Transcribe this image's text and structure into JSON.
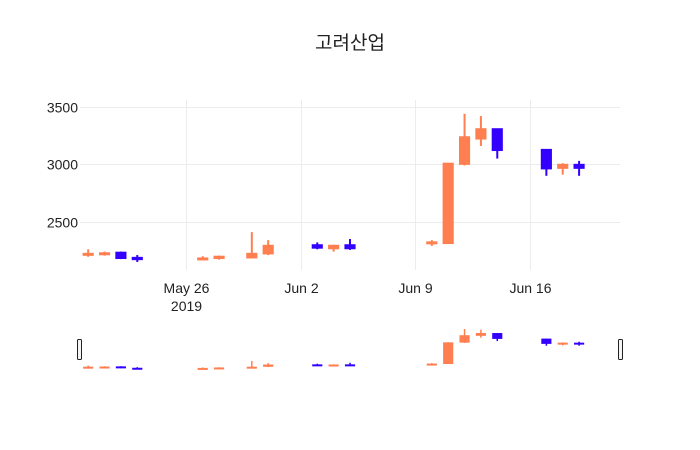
{
  "chart_data": {
    "type": "candlestick",
    "title": "고려산업",
    "xlabel": "",
    "ylabel": "",
    "ylim": [
      2080,
      3560
    ],
    "y_ticks": [
      2500,
      3000,
      3500
    ],
    "y_tick_labels": [
      "2500",
      "3000",
      "3500"
    ],
    "x_ticks": [
      {
        "date": "2019-05-26",
        "label": "May 26",
        "sublabel": "2019"
      },
      {
        "date": "2019-06-02",
        "label": "Jun 2",
        "sublabel": ""
      },
      {
        "date": "2019-06-09",
        "label": "Jun 9",
        "sublabel": ""
      },
      {
        "date": "2019-06-16",
        "label": "Jun 16",
        "sublabel": ""
      }
    ],
    "x_range": [
      "2019-05-19T12:00",
      "2019-06-21T12:00"
    ],
    "grid": true,
    "legend": "none",
    "rangeslider": true,
    "colors": {
      "increasing": "#ff7f50",
      "decreasing": "#3300ff"
    },
    "candles": [
      {
        "date": "2019-05-20",
        "open": 2210,
        "high": 2260,
        "low": 2195,
        "close": 2225
      },
      {
        "date": "2019-05-21",
        "open": 2215,
        "high": 2240,
        "low": 2205,
        "close": 2230
      },
      {
        "date": "2019-05-22",
        "open": 2235,
        "high": 2240,
        "low": 2175,
        "close": 2180
      },
      {
        "date": "2019-05-23",
        "open": 2190,
        "high": 2210,
        "low": 2150,
        "close": 2170
      },
      {
        "date": "2019-05-27",
        "open": 2170,
        "high": 2200,
        "low": 2165,
        "close": 2185
      },
      {
        "date": "2019-05-28",
        "open": 2180,
        "high": 2205,
        "low": 2170,
        "close": 2200
      },
      {
        "date": "2019-05-30",
        "open": 2185,
        "high": 2410,
        "low": 2180,
        "close": 2225
      },
      {
        "date": "2019-05-31",
        "open": 2220,
        "high": 2340,
        "low": 2210,
        "close": 2295
      },
      {
        "date": "2019-06-03",
        "open": 2300,
        "high": 2320,
        "low": 2260,
        "close": 2270
      },
      {
        "date": "2019-06-04",
        "open": 2265,
        "high": 2300,
        "low": 2240,
        "close": 2295
      },
      {
        "date": "2019-06-05",
        "open": 2300,
        "high": 2350,
        "low": 2255,
        "close": 2265
      },
      {
        "date": "2019-06-10",
        "open": 2310,
        "high": 2340,
        "low": 2290,
        "close": 2325
      },
      {
        "date": "2019-06-11",
        "open": 2310,
        "high": 3010,
        "low": 2310,
        "close": 3010
      },
      {
        "date": "2019-06-12",
        "open": 3000,
        "high": 3440,
        "low": 2990,
        "close": 3240
      },
      {
        "date": "2019-06-13",
        "open": 3220,
        "high": 3420,
        "low": 3160,
        "close": 3310
      },
      {
        "date": "2019-06-14",
        "open": 3310,
        "high": 3310,
        "low": 3050,
        "close": 3120
      },
      {
        "date": "2019-06-17",
        "open": 3130,
        "high": 3130,
        "low": 2900,
        "close": 2960
      },
      {
        "date": "2019-06-18",
        "open": 2965,
        "high": 3010,
        "low": 2910,
        "close": 3000
      },
      {
        "date": "2019-06-19",
        "open": 3000,
        "high": 3030,
        "low": 2900,
        "close": 2965
      }
    ]
  }
}
